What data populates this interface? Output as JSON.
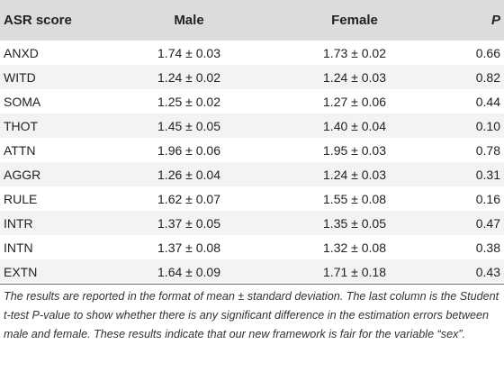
{
  "table": {
    "headers": {
      "score": "ASR score",
      "male": "Male",
      "female": "Female",
      "p": "P"
    },
    "rows": [
      {
        "score": "ANXD",
        "male": "1.74 ± 0.03",
        "female": "1.73 ± 0.02",
        "p": "0.66"
      },
      {
        "score": "WITD",
        "male": "1.24 ± 0.02",
        "female": "1.24 ± 0.03",
        "p": "0.82"
      },
      {
        "score": "SOMA",
        "male": "1.25 ± 0.02",
        "female": "1.27 ± 0.06",
        "p": "0.44"
      },
      {
        "score": "THOT",
        "male": "1.45 ± 0.05",
        "female": "1.40 ± 0.04",
        "p": "0.10"
      },
      {
        "score": "ATTN",
        "male": "1.96 ± 0.06",
        "female": "1.95 ± 0.03",
        "p": "0.78"
      },
      {
        "score": "AGGR",
        "male": "1.26 ± 0.04",
        "female": "1.24 ± 0.03",
        "p": "0.31"
      },
      {
        "score": "RULE",
        "male": "1.62 ± 0.07",
        "female": "1.55 ± 0.08",
        "p": "0.16"
      },
      {
        "score": "INTR",
        "male": "1.37 ± 0.05",
        "female": "1.35 ± 0.05",
        "p": "0.47"
      },
      {
        "score": "INTN",
        "male": "1.37 ± 0.08",
        "female": "1.32 ± 0.08",
        "p": "0.38"
      },
      {
        "score": "EXTN",
        "male": "1.64 ± 0.09",
        "female": "1.71 ± 0.18",
        "p": "0.43"
      }
    ]
  },
  "caption": "The results are reported in the format of mean ± standard deviation. The last column is the Student t-test P-value to show whether there is any significant difference in the estimation errors between male and female. These results indicate that our new framework is fair for the variable “sex”."
}
